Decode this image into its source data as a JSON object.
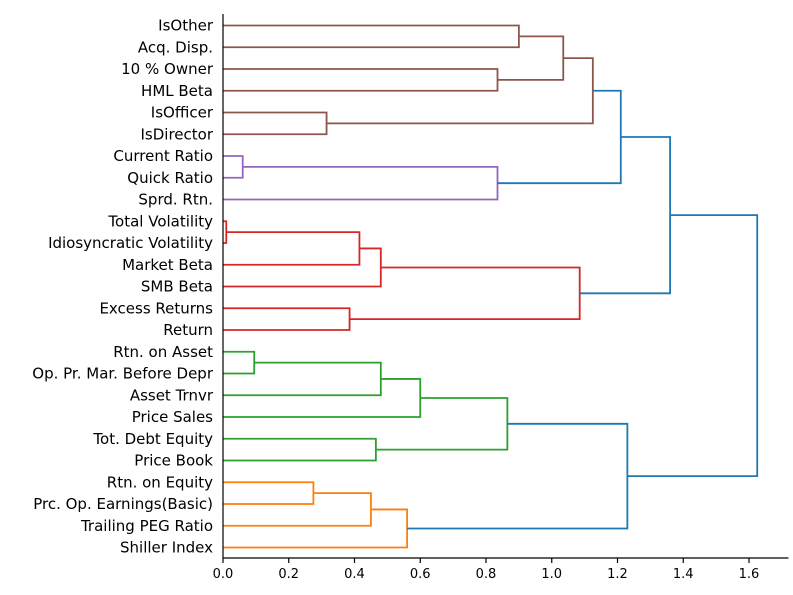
{
  "chart_data": {
    "type": "dendrogram",
    "orientation": "horizontal",
    "xlim": [
      0,
      1.72
    ],
    "x_ticks": [
      0.0,
      0.2,
      0.4,
      0.6,
      0.8,
      1.0,
      1.2,
      1.4,
      1.6
    ],
    "x_tick_labels": [
      "0.0",
      "0.2",
      "0.4",
      "0.6",
      "0.8",
      "1.0",
      "1.2",
      "1.4",
      "1.6"
    ],
    "leaves": [
      "IsOther",
      "Acq. Disp.",
      "10 % Owner",
      "HML Beta",
      "IsOfficer",
      "IsDirector",
      "Current Ratio",
      "Quick Ratio",
      "Sprd. Rtn.",
      "Total Volatility",
      "Idiosyncratic Volatility",
      "Market Beta",
      "SMB Beta",
      "Excess Returns",
      "Return",
      "Rtn. on Asset",
      "Op. Pr. Mar. Before Depr",
      "Asset Trnvr",
      "Price Sales",
      "Tot. Debt Equity",
      "Price Book",
      "Rtn. on Equity",
      "Prc. Op. Earnings(Basic)",
      "Trailing PEG Ratio",
      "Shiller Index"
    ],
    "colors": {
      "C1": "#8c564b",
      "C2": "#9467bd",
      "C3": "#d62728",
      "C4": "#2ca02c",
      "C5": "#ff7f0e",
      "C0": "#1f77b4"
    },
    "merges": [
      {
        "id": "m1",
        "left": "IsOther",
        "right": "Acq. Disp.",
        "height": 0.9,
        "color": "C1"
      },
      {
        "id": "m2",
        "left": "10 % Owner",
        "right": "HML Beta",
        "height": 0.835,
        "color": "C1"
      },
      {
        "id": "m3",
        "left": "m1",
        "right": "m2",
        "height": 1.035,
        "color": "C1"
      },
      {
        "id": "m4",
        "left": "IsOfficer",
        "right": "IsDirector",
        "height": 0.315,
        "color": "C1"
      },
      {
        "id": "m5",
        "left": "m3",
        "right": "m4",
        "height": 1.125,
        "color": "C1"
      },
      {
        "id": "m6",
        "left": "Current Ratio",
        "right": "Quick Ratio",
        "height": 0.06,
        "color": "C2"
      },
      {
        "id": "m7",
        "left": "m6",
        "right": "Sprd. Rtn.",
        "height": 0.835,
        "color": "C2"
      },
      {
        "id": "m8",
        "left": "m5",
        "right": "m7",
        "height": 1.21,
        "color": "C0"
      },
      {
        "id": "m9",
        "left": "Total Volatility",
        "right": "Idiosyncratic Volatility",
        "height": 0.01,
        "color": "C3"
      },
      {
        "id": "m10",
        "left": "m9",
        "right": "Market Beta",
        "height": 0.415,
        "color": "C3"
      },
      {
        "id": "m11",
        "left": "m10",
        "right": "SMB Beta",
        "height": 0.48,
        "color": "C3"
      },
      {
        "id": "m12",
        "left": "Excess Returns",
        "right": "Return",
        "height": 0.385,
        "color": "C3"
      },
      {
        "id": "m13",
        "left": "m11",
        "right": "m12",
        "height": 1.085,
        "color": "C3"
      },
      {
        "id": "m14",
        "left": "m8",
        "right": "m13",
        "height": 1.36,
        "color": "C0"
      },
      {
        "id": "m15",
        "left": "Rtn. on Asset",
        "right": "Op. Pr. Mar. Before Depr",
        "height": 0.095,
        "color": "C4"
      },
      {
        "id": "m16",
        "left": "m15",
        "right": "Asset Trnvr",
        "height": 0.48,
        "color": "C4"
      },
      {
        "id": "m17",
        "left": "m16",
        "right": "Price Sales",
        "height": 0.6,
        "color": "C4"
      },
      {
        "id": "m18",
        "left": "Tot. Debt Equity",
        "right": "Price Book",
        "height": 0.465,
        "color": "C4"
      },
      {
        "id": "m19",
        "left": "m17",
        "right": "m18",
        "height": 0.865,
        "color": "C4"
      },
      {
        "id": "m20",
        "left": "Rtn. on Equity",
        "right": "Prc. Op. Earnings(Basic)",
        "height": 0.275,
        "color": "C5"
      },
      {
        "id": "m21",
        "left": "m20",
        "right": "Trailing PEG Ratio",
        "height": 0.45,
        "color": "C5"
      },
      {
        "id": "m22",
        "left": "m21",
        "right": "Shiller Index",
        "height": 0.56,
        "color": "C5"
      },
      {
        "id": "m23",
        "left": "m19",
        "right": "m22",
        "height": 1.23,
        "color": "C0"
      },
      {
        "id": "m24",
        "left": "m14",
        "right": "m23",
        "height": 1.625,
        "color": "C0"
      }
    ]
  }
}
